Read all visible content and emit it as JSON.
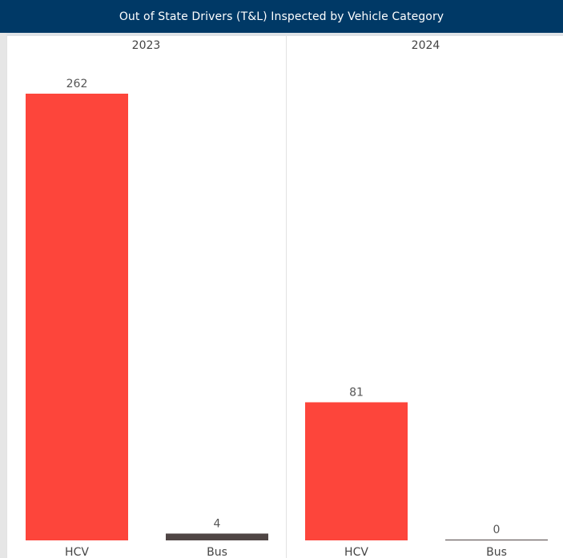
{
  "chart_data": {
    "type": "bar",
    "title": "Out of State Drivers (T&L) Inspected by Vehicle Category",
    "colors": {
      "title_bg": "#003966",
      "HCV": "#fd453b",
      "Bus": "#4f4544"
    },
    "panels": [
      {
        "year": "2023",
        "categories": [
          "HCV",
          "Bus"
        ],
        "values": [
          262,
          4
        ]
      },
      {
        "year": "2024",
        "categories": [
          "HCV",
          "Bus"
        ],
        "values": [
          81,
          0
        ]
      }
    ],
    "ylim": [
      0,
      262
    ]
  }
}
